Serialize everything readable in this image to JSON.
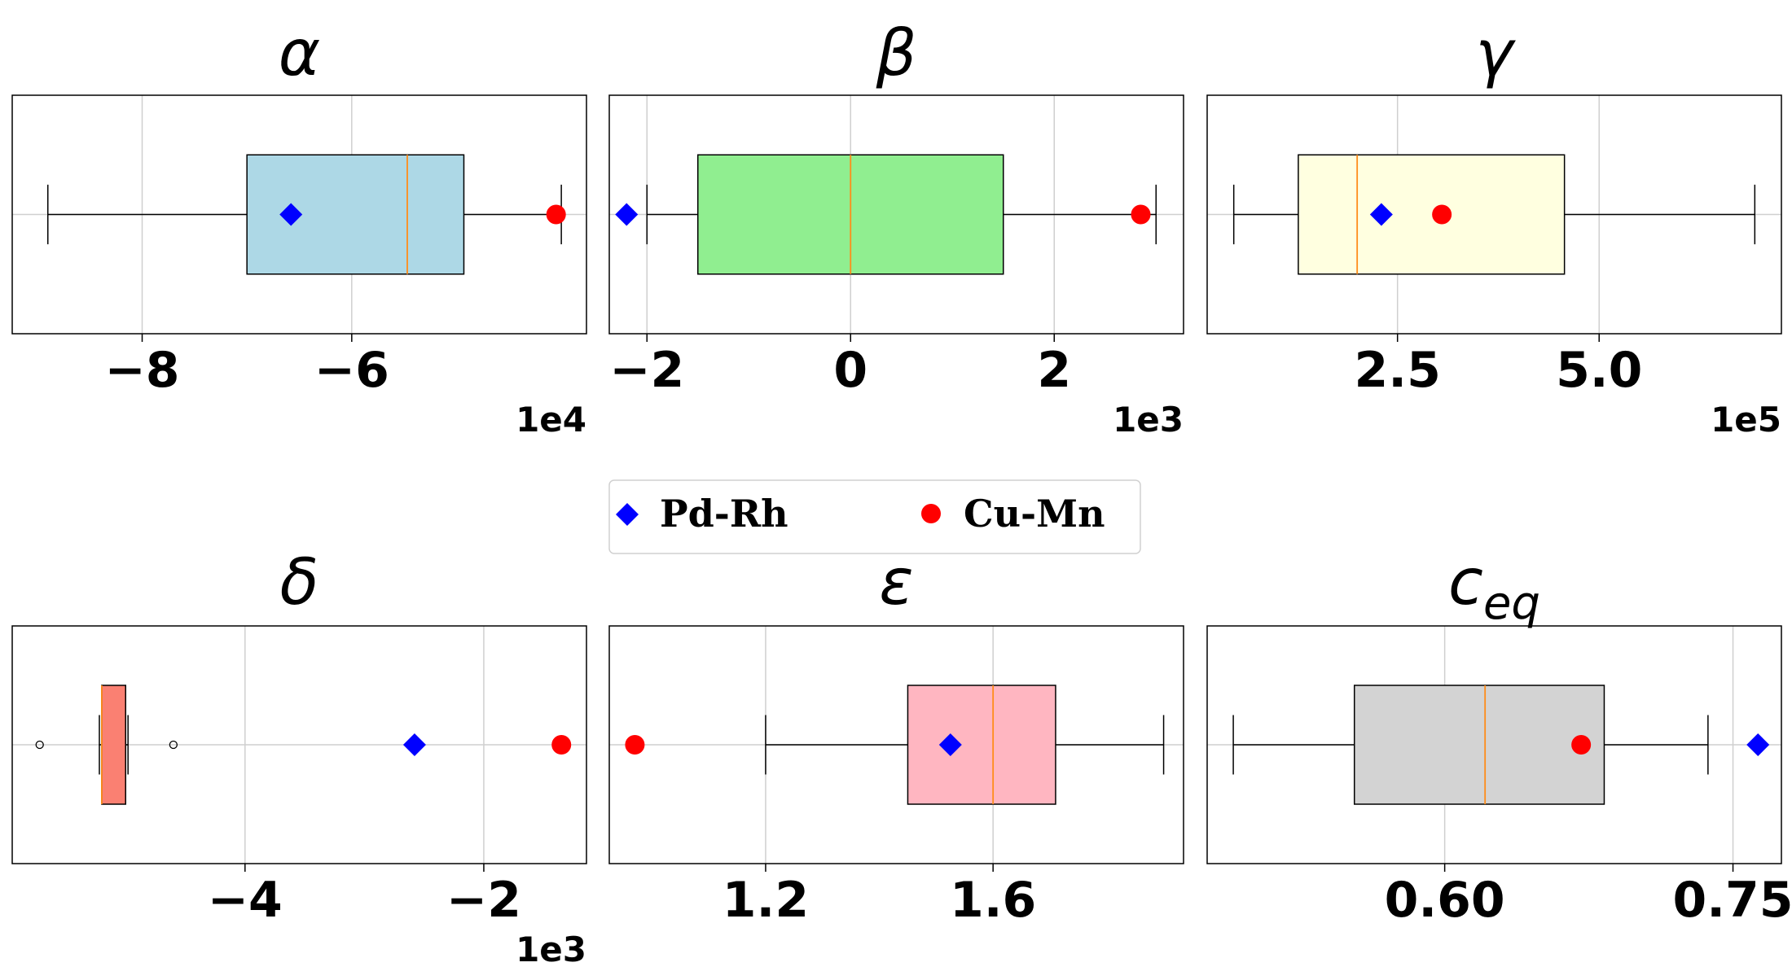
{
  "legend": {
    "position": "center",
    "entries": [
      {
        "label": "Pd-Rh",
        "marker": "diamond",
        "color": "#0000ff"
      },
      {
        "label": "Cu-Mn",
        "marker": "circle",
        "color": "#ff0000"
      }
    ]
  },
  "chart_data": [
    {
      "type": "boxplot",
      "title": "α",
      "offset_text": "1e4",
      "xlim": [
        -9.24,
        -3.76
      ],
      "ticks": [
        -8,
        -6
      ],
      "tick_labels": [
        "−8",
        "−6"
      ],
      "box_color": "#add8e6",
      "box": {
        "whisker_low": -8.9,
        "q1": -7.0,
        "median": -5.47,
        "q3": -4.93,
        "whisker_high": -4.0
      },
      "outliers": [],
      "markers": {
        "Pd-Rh": -6.58,
        "Cu-Mn": -4.05
      },
      "grid": true
    },
    {
      "type": "boxplot",
      "title": "β",
      "offset_text": "1e3",
      "xlim": [
        -2.37,
        3.27
      ],
      "ticks": [
        -2,
        0,
        2
      ],
      "tick_labels": [
        "−2",
        "0",
        "2"
      ],
      "box_color": "#90ee90",
      "box": {
        "whisker_low": -2.0,
        "q1": -1.5,
        "median": 0.0,
        "q3": 1.5,
        "whisker_high": 3.0
      },
      "outliers": [],
      "markers": {
        "Pd-Rh": -2.2,
        "Cu-Mn": 2.85
      },
      "grid": true
    },
    {
      "type": "boxplot",
      "title": "γ",
      "offset_text": "1e5",
      "xlim": [
        0.14,
        7.26
      ],
      "ticks": [
        2.5,
        5.0
      ],
      "tick_labels": [
        "2.5",
        "5.0"
      ],
      "box_color": "#ffffe0",
      "box": {
        "whisker_low": 0.47,
        "q1": 1.27,
        "median": 2.0,
        "q3": 4.57,
        "whisker_high": 6.93
      },
      "outliers": [],
      "markers": {
        "Pd-Rh": 2.3,
        "Cu-Mn": 3.05
      },
      "grid": true
    },
    {
      "type": "boxplot",
      "title": "δ",
      "offset_text": "1e3",
      "xlim": [
        -5.95,
        -1.14
      ],
      "ticks": [
        -4,
        -2
      ],
      "tick_labels": [
        "−4",
        "−2"
      ],
      "box_color": "#fa8072",
      "box": {
        "whisker_low": -5.22,
        "q1": -5.2,
        "median": -5.2,
        "q3": -5.0,
        "whisker_high": -4.98
      },
      "outliers": [
        -5.72,
        -4.6
      ],
      "markers": {
        "Pd-Rh": -2.58,
        "Cu-Mn": -1.35
      },
      "grid": true
    },
    {
      "type": "boxplot",
      "title": "ε",
      "offset_text": "",
      "xlim": [
        0.925,
        1.935
      ],
      "ticks": [
        1.2,
        1.6
      ],
      "tick_labels": [
        "1.2",
        "1.6"
      ],
      "box_color": "#ffb6c1",
      "box": {
        "whisker_low": 1.2,
        "q1": 1.45,
        "median": 1.6,
        "q3": 1.71,
        "whisker_high": 1.9
      },
      "outliers": [],
      "markers": {
        "Pd-Rh": 1.525,
        "Cu-Mn": 0.97
      },
      "grid": true
    },
    {
      "type": "boxplot",
      "title": "c_eq",
      "title_main": "c",
      "title_sub": "eq",
      "offset_text": "",
      "xlim": [
        0.4764,
        0.7752
      ],
      "ticks": [
        0.6,
        0.75
      ],
      "tick_labels": [
        "0.60",
        "0.75"
      ],
      "box_color": "#d3d3d3",
      "box": {
        "whisker_low": 0.49,
        "q1": 0.553,
        "median": 0.621,
        "q3": 0.683,
        "whisker_high": 0.737
      },
      "outliers": [],
      "markers": {
        "Pd-Rh": 0.763,
        "Cu-Mn": 0.671
      },
      "grid": true
    }
  ]
}
